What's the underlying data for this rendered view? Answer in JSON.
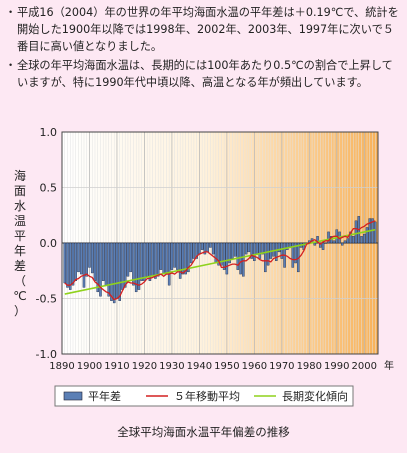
{
  "notes": [
    "平成16（2004）年の世界の年平均海面水温の平年差は＋0.19℃で、統計を開始した1900年以降では1998年、2002年、2003年、1997年に次いで５番目に高い値となりました。",
    "全球の年平均海面水温は、長期的には100年あたり0.5℃の割合で上昇していますが、特に1990年代中頃以降、高温となる年が頻出しています。"
  ],
  "bullet": "・",
  "caption": "全球平均海面水温平年偏差の推移",
  "colors": {
    "background": "#fde8f3",
    "bar": "#5b7fb5",
    "moving_average": "#d42020",
    "trend": "#8fd21c"
  },
  "chart_data": {
    "type": "bar",
    "ylabel": "海面水温平年差（℃）",
    "xunit": "年",
    "xlim": [
      1890,
      2005
    ],
    "ylim": [
      -1.0,
      1.0
    ],
    "yticks": [
      "1.0",
      "0.5",
      "0.0",
      "-0.5",
      "-1.0"
    ],
    "xticks": [
      "1890",
      "1900",
      "1910",
      "1920",
      "1930",
      "1940",
      "1950",
      "1960",
      "1970",
      "1980",
      "1990",
      "2000"
    ],
    "legend": [
      "平年差",
      "５年移動平均",
      "長期変化傾向"
    ],
    "legend_position": "bottom",
    "years": [
      1891,
      1892,
      1893,
      1894,
      1895,
      1896,
      1897,
      1898,
      1899,
      1900,
      1901,
      1902,
      1903,
      1904,
      1905,
      1906,
      1907,
      1908,
      1909,
      1910,
      1911,
      1912,
      1913,
      1914,
      1915,
      1916,
      1917,
      1918,
      1919,
      1920,
      1921,
      1922,
      1923,
      1924,
      1925,
      1926,
      1927,
      1928,
      1929,
      1930,
      1931,
      1932,
      1933,
      1934,
      1935,
      1936,
      1937,
      1938,
      1939,
      1940,
      1941,
      1942,
      1943,
      1944,
      1945,
      1946,
      1947,
      1948,
      1949,
      1950,
      1951,
      1952,
      1953,
      1954,
      1955,
      1956,
      1957,
      1958,
      1959,
      1960,
      1961,
      1962,
      1963,
      1964,
      1965,
      1966,
      1967,
      1968,
      1969,
      1970,
      1971,
      1972,
      1973,
      1974,
      1975,
      1976,
      1977,
      1978,
      1979,
      1980,
      1981,
      1982,
      1983,
      1984,
      1985,
      1986,
      1987,
      1988,
      1989,
      1990,
      1991,
      1992,
      1993,
      1994,
      1995,
      1996,
      1997,
      1998,
      1999,
      2000,
      2001,
      2002,
      2003,
      2004
    ],
    "anomaly": [
      -0.36,
      -0.4,
      -0.42,
      -0.38,
      -0.34,
      -0.26,
      -0.28,
      -0.4,
      -0.3,
      -0.22,
      -0.27,
      -0.34,
      -0.44,
      -0.48,
      -0.34,
      -0.38,
      -0.48,
      -0.52,
      -0.54,
      -0.5,
      -0.52,
      -0.42,
      -0.4,
      -0.3,
      -0.26,
      -0.38,
      -0.44,
      -0.42,
      -0.34,
      -0.34,
      -0.3,
      -0.34,
      -0.3,
      -0.32,
      -0.3,
      -0.24,
      -0.28,
      -0.28,
      -0.38,
      -0.24,
      -0.22,
      -0.24,
      -0.32,
      -0.28,
      -0.28,
      -0.26,
      -0.18,
      -0.14,
      -0.14,
      -0.1,
      -0.06,
      -0.1,
      -0.08,
      -0.04,
      -0.1,
      -0.18,
      -0.2,
      -0.2,
      -0.24,
      -0.28,
      -0.18,
      -0.14,
      -0.12,
      -0.24,
      -0.28,
      -0.3,
      -0.1,
      -0.08,
      -0.14,
      -0.16,
      -0.1,
      -0.14,
      -0.1,
      -0.26,
      -0.2,
      -0.14,
      -0.12,
      -0.16,
      -0.08,
      -0.14,
      -0.22,
      -0.06,
      -0.04,
      -0.22,
      -0.18,
      -0.26,
      -0.04,
      -0.06,
      0.0,
      0.02,
      0.04,
      -0.02,
      0.06,
      -0.04,
      -0.06,
      0.0,
      0.1,
      0.06,
      0.02,
      0.12,
      0.1,
      -0.02,
      0.02,
      0.04,
      0.1,
      0.06,
      0.2,
      0.24,
      0.06,
      0.08,
      0.14,
      0.22,
      0.22,
      0.19
    ],
    "moving_average": [
      -0.36,
      -0.38,
      -0.38,
      -0.36,
      -0.33,
      -0.32,
      -0.3,
      -0.29,
      -0.28,
      -0.3,
      -0.31,
      -0.35,
      -0.37,
      -0.4,
      -0.42,
      -0.44,
      -0.45,
      -0.48,
      -0.51,
      -0.5,
      -0.48,
      -0.43,
      -0.38,
      -0.35,
      -0.36,
      -0.36,
      -0.37,
      -0.38,
      -0.37,
      -0.35,
      -0.32,
      -0.32,
      -0.31,
      -0.3,
      -0.29,
      -0.28,
      -0.3,
      -0.28,
      -0.28,
      -0.27,
      -0.28,
      -0.26,
      -0.26,
      -0.27,
      -0.25,
      -0.22,
      -0.2,
      -0.16,
      -0.12,
      -0.1,
      -0.09,
      -0.08,
      -0.08,
      -0.1,
      -0.12,
      -0.14,
      -0.16,
      -0.22,
      -0.22,
      -0.21,
      -0.2,
      -0.19,
      -0.19,
      -0.2,
      -0.17,
      -0.16,
      -0.16,
      -0.14,
      -0.11,
      -0.12,
      -0.13,
      -0.15,
      -0.16,
      -0.16,
      -0.16,
      -0.17,
      -0.14,
      -0.13,
      -0.12,
      -0.11,
      -0.11,
      -0.12,
      -0.14,
      -0.15,
      -0.15,
      -0.14,
      -0.11,
      -0.07,
      -0.01,
      0.0,
      0.02,
      0.03,
      0.01,
      -0.01,
      0.01,
      0.02,
      0.02,
      0.05,
      0.06,
      0.06,
      0.04,
      0.05,
      0.06,
      0.05,
      0.09,
      0.13,
      0.13,
      0.12,
      0.14,
      0.15,
      0.17,
      0.18,
      0.19,
      0.2
    ],
    "trend": {
      "start": [
        1891,
        -0.46
      ],
      "end": [
        2004,
        0.12
      ]
    }
  }
}
